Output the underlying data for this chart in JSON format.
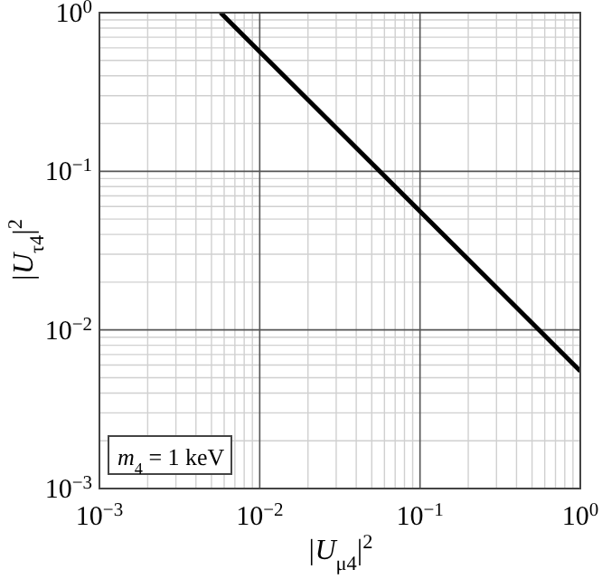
{
  "chart_data": {
    "type": "line",
    "xlabel": "|U$_{μ4}$|$^{2}$",
    "ylabel": "|U$_{τ4}$|$^{2}$",
    "log": "xy",
    "grid": true,
    "line_style": "solid",
    "marker": "none",
    "xlim": [
      0.001,
      1
    ],
    "ylim": [
      0.001,
      1
    ],
    "xticks": [
      {
        "value": 0.001,
        "label": "10$^{−3}$"
      },
      {
        "value": 0.01,
        "label": "10$^{−2}$"
      },
      {
        "value": 0.1,
        "label": "10$^{−1}$"
      },
      {
        "value": 1,
        "label": "10$^{0}$"
      }
    ],
    "yticks": [
      {
        "value": 0.001,
        "label": "10$^{−3}$"
      },
      {
        "value": 0.01,
        "label": "10$^{−2}$"
      },
      {
        "value": 0.1,
        "label": "10$^{−1}$"
      },
      {
        "value": 1,
        "label": "10$^{0}$"
      }
    ],
    "series": [
      {
        "color": "#000000",
        "x": [
          0.0057,
          1
        ],
        "values": [
          1,
          0.0055
        ]
      }
    ],
    "annotations": [
      "m$_{4}$ = 1 keV"
    ]
  }
}
